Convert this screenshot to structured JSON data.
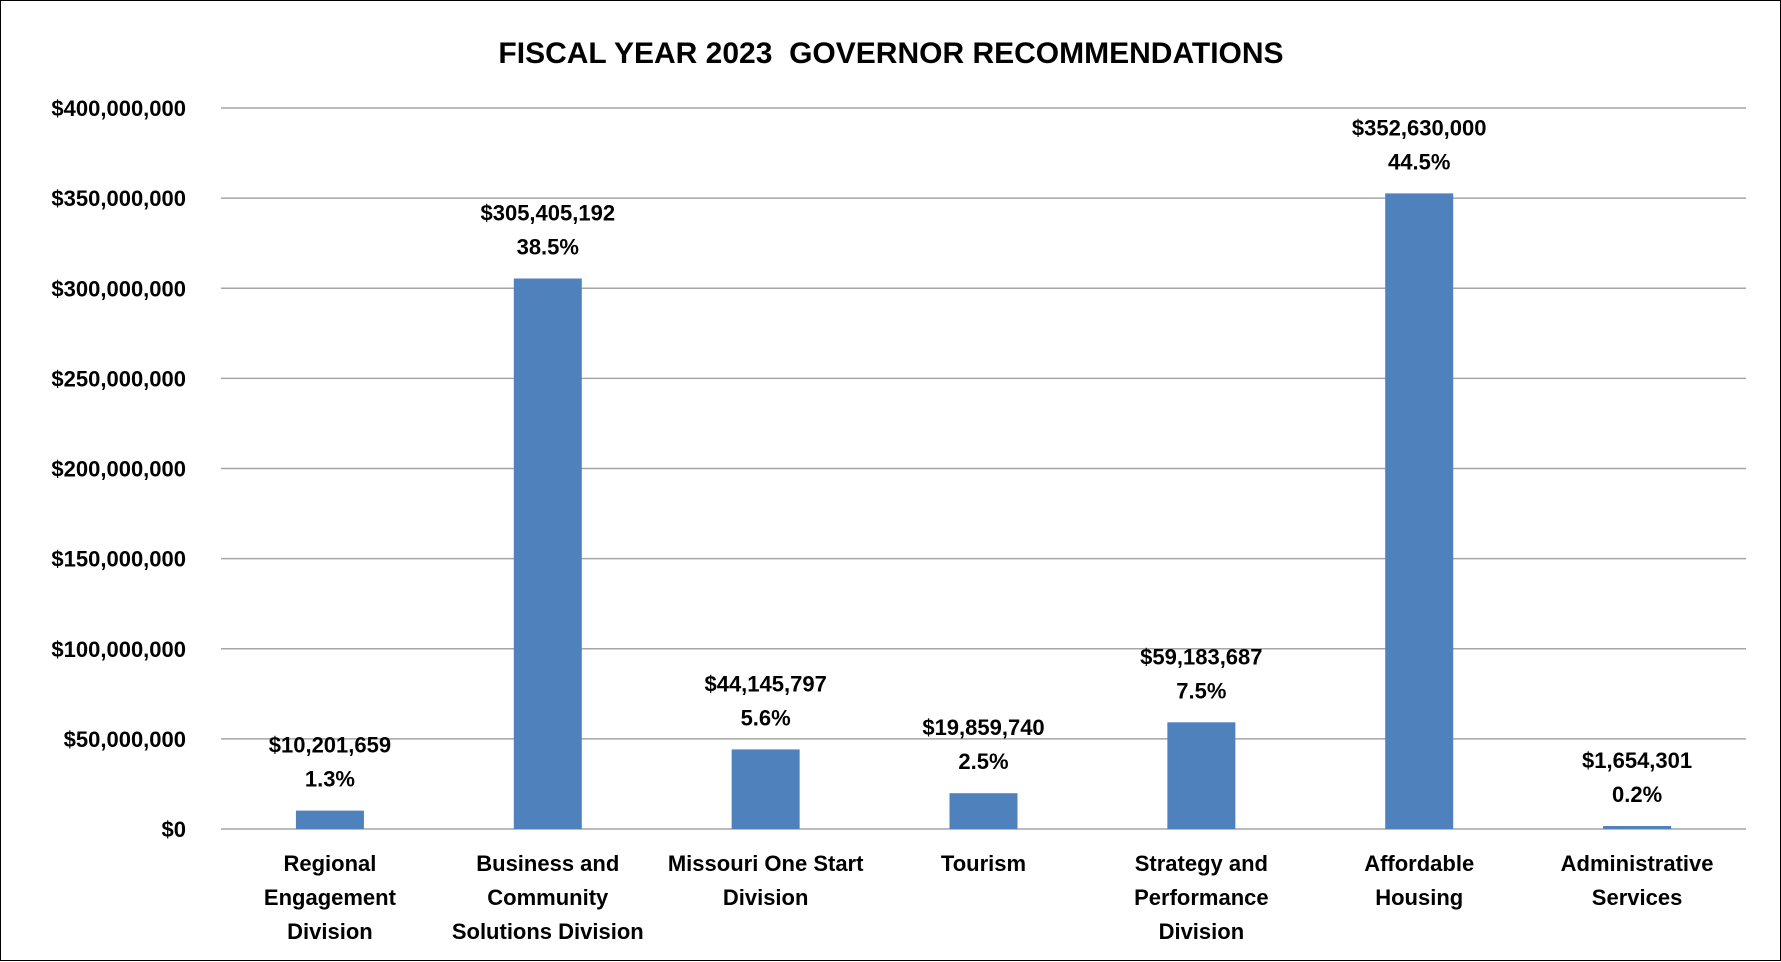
{
  "chart_data": {
    "type": "bar",
    "title": "FISCAL YEAR 2023  GOVERNOR RECOMMENDATIONS",
    "categories": [
      [
        "Regional",
        "Engagement",
        "Division"
      ],
      [
        "Business and",
        "Community",
        "Solutions Division"
      ],
      [
        "Missouri One Start",
        "Division"
      ],
      [
        "Tourism"
      ],
      [
        "Strategy and",
        "Performance",
        "Division"
      ],
      [
        "Affordable",
        "Housing"
      ],
      [
        "Administrative",
        "Services"
      ]
    ],
    "values": [
      10201659,
      305405192,
      44145797,
      19859740,
      59183687,
      352630000,
      1654301
    ],
    "value_labels": [
      "$10,201,659",
      "$305,405,192",
      "$44,145,797",
      "$19,859,740",
      "$59,183,687",
      "$352,630,000",
      "$1,654,301"
    ],
    "percent_labels": [
      "1.3%",
      "38.5%",
      "5.6%",
      "2.5%",
      "7.5%",
      "44.5%",
      "0.2%"
    ],
    "ylim": [
      0,
      400000000
    ],
    "yticks": [
      0,
      50000000,
      100000000,
      150000000,
      200000000,
      250000000,
      300000000,
      350000000,
      400000000
    ],
    "ytick_labels": [
      "$0",
      "$50,000,000",
      "$100,000,000",
      "$150,000,000",
      "$200,000,000",
      "$250,000,000",
      "$300,000,000",
      "$350,000,000",
      "$400,000,000"
    ],
    "xlabel": "",
    "ylabel": "",
    "grid": true,
    "legend": "none",
    "bar_color": "#4f81bd",
    "grid_color": "#a6a6a6"
  }
}
